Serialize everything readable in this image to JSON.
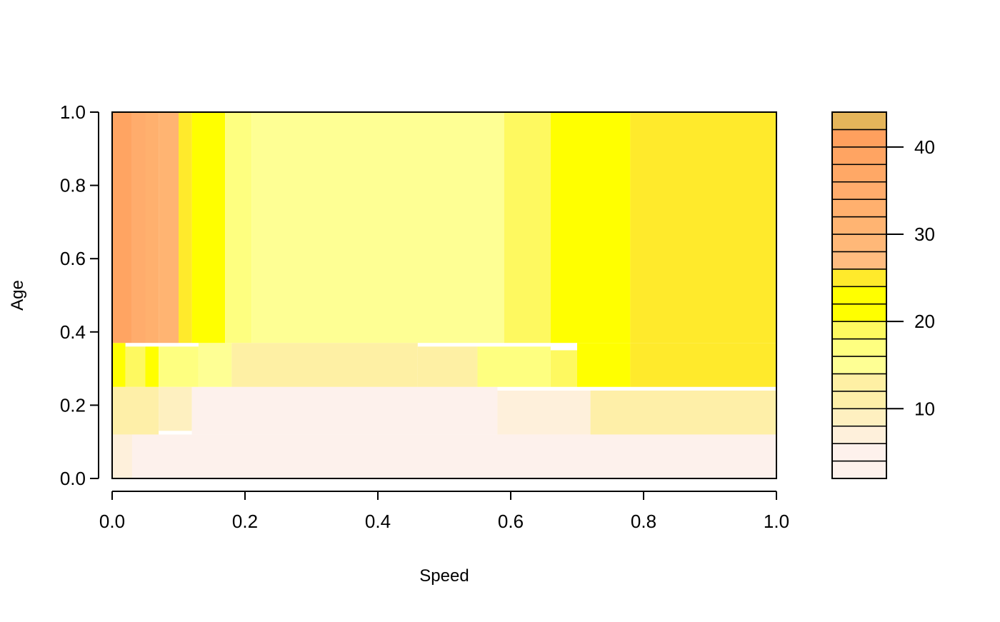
{
  "chart_data": {
    "type": "heatmap",
    "title": "",
    "xlabel": "Speed",
    "ylabel": "Age",
    "xlim": [
      0,
      1
    ],
    "ylim": [
      0,
      1
    ],
    "x_ticks": [
      "0.0",
      "0.2",
      "0.4",
      "0.6",
      "0.8",
      "1.0"
    ],
    "y_ticks": [
      "0.0",
      "0.2",
      "0.4",
      "0.6",
      "0.8",
      "1.0"
    ],
    "colorbar": {
      "ticks": [
        "10",
        "20",
        "30",
        "40"
      ],
      "tick_values": [
        10,
        20,
        30,
        40
      ],
      "range": [
        2,
        44
      ],
      "levels": [
        {
          "from": 2,
          "to": 4,
          "color": "#FDF1EC"
        },
        {
          "from": 4,
          "to": 6,
          "color": "#FDF1EC"
        },
        {
          "from": 6,
          "to": 8,
          "color": "#FEF0DB"
        },
        {
          "from": 8,
          "to": 10,
          "color": "#FEF0C0"
        },
        {
          "from": 10,
          "to": 12,
          "color": "#FEEFA8"
        },
        {
          "from": 12,
          "to": 14,
          "color": "#FEF0A4"
        },
        {
          "from": 14,
          "to": 16,
          "color": "#FEFF94"
        },
        {
          "from": 16,
          "to": 18,
          "color": "#FEFF80"
        },
        {
          "from": 18,
          "to": 20,
          "color": "#FEF960"
        },
        {
          "from": 20,
          "to": 22,
          "color": "#FFFF00"
        },
        {
          "from": 22,
          "to": 24,
          "color": "#FFFF00"
        },
        {
          "from": 24,
          "to": 26,
          "color": "#FFEA2C"
        },
        {
          "from": 26,
          "to": 28,
          "color": "#FFBC80"
        },
        {
          "from": 28,
          "to": 30,
          "color": "#FFB878"
        },
        {
          "from": 30,
          "to": 32,
          "color": "#FFB472"
        },
        {
          "from": 32,
          "to": 34,
          "color": "#FFB06E"
        },
        {
          "from": 34,
          "to": 36,
          "color": "#FFAC6C"
        },
        {
          "from": 36,
          "to": 38,
          "color": "#FFA866"
        },
        {
          "from": 38,
          "to": 40,
          "color": "#FFA462"
        },
        {
          "from": 40,
          "to": 42,
          "color": "#FFA05E"
        },
        {
          "from": 42,
          "to": 44,
          "color": "#E5B55A"
        }
      ]
    },
    "regions": [
      {
        "x0": 0.0,
        "x1": 1.0,
        "y0": 0.0,
        "y1": 0.12,
        "value": 3
      },
      {
        "x0": 0.0,
        "x1": 0.03,
        "y0": 0.0,
        "y1": 0.12,
        "value": 7
      },
      {
        "x0": 0.0,
        "x1": 0.07,
        "y0": 0.12,
        "y1": 0.25,
        "value": 11
      },
      {
        "x0": 0.07,
        "x1": 0.12,
        "y0": 0.13,
        "y1": 0.25,
        "value": 9
      },
      {
        "x0": 0.12,
        "x1": 0.58,
        "y0": 0.12,
        "y1": 0.25,
        "value": 3
      },
      {
        "x0": 0.58,
        "x1": 0.72,
        "y0": 0.12,
        "y1": 0.24,
        "value": 7
      },
      {
        "x0": 0.72,
        "x1": 1.0,
        "y0": 0.12,
        "y1": 0.24,
        "value": 11
      },
      {
        "x0": 0.0,
        "x1": 0.02,
        "y0": 0.25,
        "y1": 0.37,
        "value": 22
      },
      {
        "x0": 0.02,
        "x1": 0.05,
        "y0": 0.25,
        "y1": 0.36,
        "value": 19
      },
      {
        "x0": 0.05,
        "x1": 0.07,
        "y0": 0.25,
        "y1": 0.36,
        "value": 22
      },
      {
        "x0": 0.07,
        "x1": 0.13,
        "y0": 0.25,
        "y1": 0.36,
        "value": 16
      },
      {
        "x0": 0.13,
        "x1": 0.18,
        "y0": 0.25,
        "y1": 0.37,
        "value": 14
      },
      {
        "x0": 0.18,
        "x1": 0.46,
        "y0": 0.25,
        "y1": 0.37,
        "value": 12
      },
      {
        "x0": 0.46,
        "x1": 0.55,
        "y0": 0.25,
        "y1": 0.36,
        "value": 13
      },
      {
        "x0": 0.55,
        "x1": 0.66,
        "y0": 0.25,
        "y1": 0.36,
        "value": 16
      },
      {
        "x0": 0.66,
        "x1": 0.7,
        "y0": 0.25,
        "y1": 0.35,
        "value": 18
      },
      {
        "x0": 0.7,
        "x1": 0.78,
        "y0": 0.25,
        "y1": 0.37,
        "value": 22
      },
      {
        "x0": 0.78,
        "x1": 1.0,
        "y0": 0.25,
        "y1": 0.37,
        "value": 25
      },
      {
        "x0": 0.0,
        "x1": 0.03,
        "y0": 0.37,
        "y1": 1.0,
        "value": 39
      },
      {
        "x0": 0.03,
        "x1": 0.05,
        "y0": 0.37,
        "y1": 1.0,
        "value": 35
      },
      {
        "x0": 0.05,
        "x1": 0.07,
        "y0": 0.37,
        "y1": 1.0,
        "value": 33
      },
      {
        "x0": 0.07,
        "x1": 0.1,
        "y0": 0.37,
        "y1": 1.0,
        "value": 31
      },
      {
        "x0": 0.1,
        "x1": 0.12,
        "y0": 0.37,
        "y1": 1.0,
        "value": 25
      },
      {
        "x0": 0.12,
        "x1": 0.17,
        "y0": 0.37,
        "y1": 1.0,
        "value": 22
      },
      {
        "x0": 0.17,
        "x1": 0.21,
        "y0": 0.37,
        "y1": 1.0,
        "value": 17
      },
      {
        "x0": 0.21,
        "x1": 0.59,
        "y0": 0.37,
        "y1": 1.0,
        "value": 15
      },
      {
        "x0": 0.59,
        "x1": 0.66,
        "y0": 0.37,
        "y1": 1.0,
        "value": 18
      },
      {
        "x0": 0.66,
        "x1": 0.78,
        "y0": 0.37,
        "y1": 1.0,
        "value": 22
      },
      {
        "x0": 0.78,
        "x1": 1.0,
        "y0": 0.37,
        "y1": 1.0,
        "value": 25
      }
    ]
  }
}
